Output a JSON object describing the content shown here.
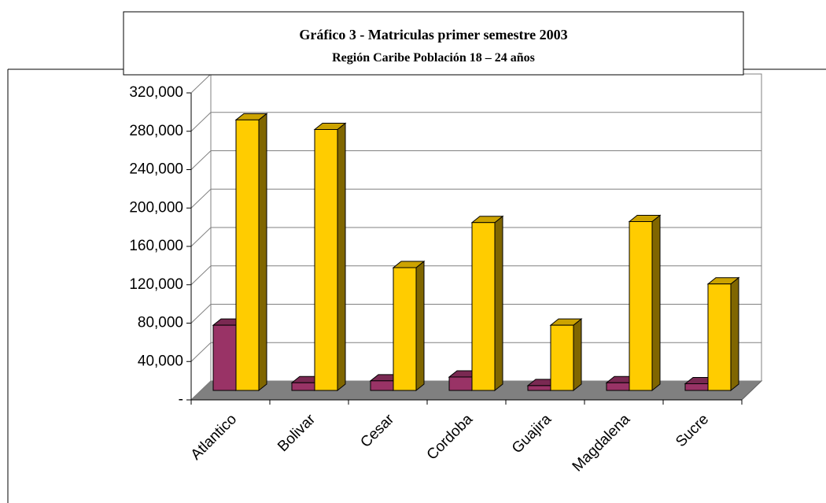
{
  "chart_data": {
    "type": "bar3d",
    "title": "Gráfico 3 -  Matriculas primer semestre 2003",
    "subtitle": "Región Caribe Población 18 – 24 años",
    "categories": [
      "Atlantico",
      "Bolivar",
      "Cesar",
      "Cordoba",
      "Guajira",
      "Magdalena",
      "Sucre"
    ],
    "series": [
      {
        "color": "#993366",
        "values": [
          68000,
          8000,
          10000,
          14000,
          5000,
          8000,
          7000
        ]
      },
      {
        "color": "#ffcc00",
        "values": [
          282000,
          272000,
          128000,
          175000,
          68000,
          176000,
          111000
        ]
      }
    ],
    "ylim": [
      0,
      320000
    ],
    "yticks": [
      {
        "value": 0,
        "label": "-"
      },
      {
        "value": 40000,
        "label": "40,000"
      },
      {
        "value": 80000,
        "label": "80,000"
      },
      {
        "value": 120000,
        "label": "120,000"
      },
      {
        "value": 160000,
        "label": "160,000"
      },
      {
        "value": 200000,
        "label": "200,000"
      },
      {
        "value": 240000,
        "label": "240,000"
      },
      {
        "value": 280000,
        "label": "280,000"
      },
      {
        "value": 320000,
        "label": "320,000"
      }
    ],
    "grid": true
  }
}
